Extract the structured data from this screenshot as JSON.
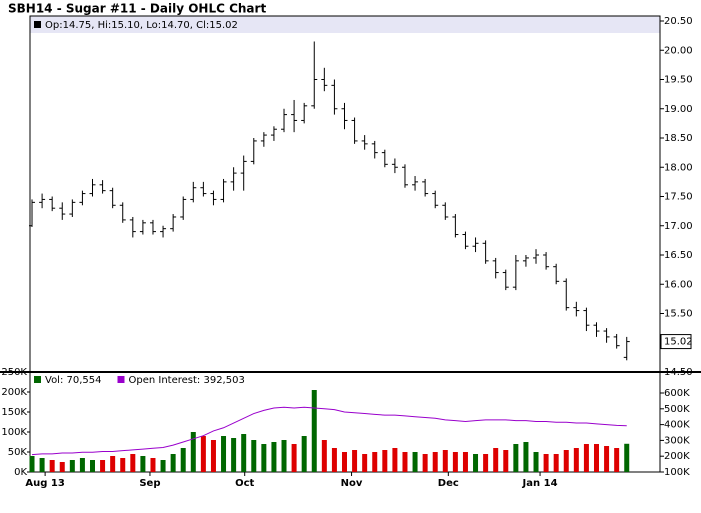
{
  "chart_data": [
    {
      "type": "ohlc",
      "title": "SBH14 - Sugar #11 - Daily OHLC Chart",
      "legend": "Op:14.75, Hi:15.10, Lo:14.70, Cl:15.02",
      "last_price": "15.02",
      "color": "#000000",
      "xlim": [
        -0.2,
        62.3
      ],
      "ylim": [
        14.5,
        20.5
      ],
      "yticks": [
        {
          "value": 14.5,
          "label": "14.50"
        },
        {
          "value": 15.5,
          "label": "15.50"
        },
        {
          "value": 16,
          "label": "16.00"
        },
        {
          "value": 16.5,
          "label": "16.50"
        },
        {
          "value": 17,
          "label": "17.00"
        },
        {
          "value": 17.5,
          "label": "17.50"
        },
        {
          "value": 18,
          "label": "18.00"
        },
        {
          "value": 18.5,
          "label": "18.50"
        },
        {
          "value": 19,
          "label": "19.00"
        },
        {
          "value": 19.5,
          "label": "19.50"
        },
        {
          "value": 20,
          "label": "20.00"
        },
        {
          "value": 20.5,
          "label": "20.50"
        }
      ],
      "series": [
        {
          "name": "OHLC",
          "values": [
            [
              17.0,
              17.45,
              16.98,
              17.4
            ],
            [
              17.4,
              17.55,
              17.3,
              17.45
            ],
            [
              17.45,
              17.5,
              17.25,
              17.3
            ],
            [
              17.3,
              17.4,
              17.1,
              17.2
            ],
            [
              17.2,
              17.45,
              17.15,
              17.4
            ],
            [
              17.4,
              17.6,
              17.35,
              17.55
            ],
            [
              17.55,
              17.8,
              17.5,
              17.7
            ],
            [
              17.7,
              17.78,
              17.55,
              17.6
            ],
            [
              17.6,
              17.65,
              17.3,
              17.35
            ],
            [
              17.35,
              17.4,
              17.05,
              17.1
            ],
            [
              17.1,
              17.15,
              16.8,
              16.9
            ],
            [
              16.9,
              17.1,
              16.85,
              17.05
            ],
            [
              17.05,
              17.1,
              16.85,
              16.9
            ],
            [
              16.9,
              17.0,
              16.8,
              16.95
            ],
            [
              16.95,
              17.2,
              16.9,
              17.15
            ],
            [
              17.15,
              17.5,
              17.1,
              17.45
            ],
            [
              17.45,
              17.75,
              17.4,
              17.65
            ],
            [
              17.65,
              17.75,
              17.5,
              17.55
            ],
            [
              17.55,
              17.6,
              17.35,
              17.45
            ],
            [
              17.45,
              17.8,
              17.4,
              17.75
            ],
            [
              17.75,
              18.0,
              17.6,
              17.9
            ],
            [
              17.9,
              18.2,
              17.6,
              18.1
            ],
            [
              18.1,
              18.5,
              18.05,
              18.45
            ],
            [
              18.45,
              18.6,
              18.35,
              18.55
            ],
            [
              18.55,
              18.7,
              18.45,
              18.65
            ],
            [
              18.65,
              19.0,
              18.6,
              18.9
            ],
            [
              18.9,
              19.15,
              18.6,
              18.8
            ],
            [
              18.8,
              19.1,
              18.75,
              19.05
            ],
            [
              19.05,
              20.15,
              19.0,
              19.5
            ],
            [
              19.5,
              19.7,
              19.3,
              19.4
            ],
            [
              19.4,
              19.5,
              18.9,
              19.0
            ],
            [
              19.0,
              19.1,
              18.65,
              18.8
            ],
            [
              18.8,
              18.85,
              18.4,
              18.45
            ],
            [
              18.45,
              18.55,
              18.3,
              18.4
            ],
            [
              18.4,
              18.45,
              18.15,
              18.25
            ],
            [
              18.25,
              18.3,
              18.0,
              18.05
            ],
            [
              18.05,
              18.15,
              17.9,
              18.0
            ],
            [
              18.0,
              18.05,
              17.65,
              17.7
            ],
            [
              17.7,
              17.85,
              17.6,
              17.75
            ],
            [
              17.75,
              17.8,
              17.5,
              17.55
            ],
            [
              17.55,
              17.6,
              17.3,
              17.35
            ],
            [
              17.35,
              17.4,
              17.1,
              17.15
            ],
            [
              17.15,
              17.2,
              16.8,
              16.85
            ],
            [
              16.85,
              16.9,
              16.6,
              16.65
            ],
            [
              16.65,
              16.8,
              16.55,
              16.7
            ],
            [
              16.7,
              16.75,
              16.35,
              16.4
            ],
            [
              16.4,
              16.45,
              16.1,
              16.2
            ],
            [
              16.2,
              16.25,
              15.9,
              15.95
            ],
            [
              15.95,
              16.5,
              15.9,
              16.4
            ],
            [
              16.4,
              16.5,
              16.3,
              16.45
            ],
            [
              16.45,
              16.6,
              16.35,
              16.5
            ],
            [
              16.5,
              16.55,
              16.25,
              16.3
            ],
            [
              16.3,
              16.35,
              16.0,
              16.05
            ],
            [
              16.05,
              16.1,
              15.55,
              15.6
            ],
            [
              15.6,
              15.7,
              15.45,
              15.55
            ],
            [
              15.55,
              15.6,
              15.2,
              15.3
            ],
            [
              15.3,
              15.35,
              15.1,
              15.2
            ],
            [
              15.2,
              15.25,
              15.0,
              15.1
            ],
            [
              15.1,
              15.15,
              14.9,
              14.95
            ],
            [
              14.75,
              15.1,
              14.7,
              15.02
            ]
          ]
        }
      ]
    },
    {
      "type": "volume",
      "xlim": [
        -0.2,
        62.3
      ],
      "ylim": [
        0,
        250000
      ],
      "y2lim": [
        100000,
        733000
      ],
      "up_color": "#006600",
      "down_color": "#dd0000",
      "yticks": [
        {
          "value": 0,
          "label": "0K"
        },
        {
          "value": 50000,
          "label": "50K"
        },
        {
          "value": 100000,
          "label": "100K"
        },
        {
          "value": 150000,
          "label": "150K"
        },
        {
          "value": 200000,
          "label": "200K"
        },
        {
          "value": 250000,
          "label": "250K"
        }
      ],
      "y2ticks": [
        {
          "value": 100000,
          "label": "100K"
        },
        {
          "value": 200000,
          "label": "200K"
        },
        {
          "value": 300000,
          "label": "300K"
        },
        {
          "value": 400000,
          "label": "400K"
        },
        {
          "value": 500000,
          "label": "500K"
        },
        {
          "value": 600000,
          "label": "600K"
        }
      ],
      "xticks": [
        {
          "value": 1.3,
          "label": "Aug 13"
        },
        {
          "value": 11.7,
          "label": "Sep"
        },
        {
          "value": 21.1,
          "label": "Oct"
        },
        {
          "value": 31.7,
          "label": "Nov"
        },
        {
          "value": 41.3,
          "label": "Dec"
        },
        {
          "value": 50.4,
          "label": "Jan 14"
        }
      ],
      "series": [
        {
          "name": "Vol: 70,554",
          "color": "#006600",
          "values": [
            40000,
            35000,
            30000,
            25000,
            30000,
            35000,
            30000,
            30000,
            40000,
            35000,
            45000,
            40000,
            35000,
            30000,
            45000,
            60000,
            100000,
            90000,
            80000,
            90000,
            85000,
            95000,
            80000,
            70000,
            75000,
            80000,
            70000,
            90000,
            205000,
            80000,
            60000,
            50000,
            55000,
            45000,
            50000,
            55000,
            60000,
            50000,
            50000,
            45000,
            50000,
            55000,
            50000,
            50000,
            45000,
            45000,
            60000,
            55000,
            70000,
            75000,
            50000,
            45000,
            45000,
            55000,
            60000,
            70000,
            70000,
            65000,
            60000,
            70554
          ]
        },
        {
          "name": "Open Interest: 392,503",
          "color": "#9900cc",
          "axis": "y2",
          "values": [
            210000,
            215000,
            215000,
            220000,
            220000,
            225000,
            225000,
            230000,
            230000,
            235000,
            240000,
            245000,
            250000,
            255000,
            270000,
            290000,
            310000,
            330000,
            360000,
            380000,
            410000,
            440000,
            470000,
            490000,
            505000,
            510000,
            505000,
            510000,
            505000,
            500000,
            495000,
            480000,
            475000,
            470000,
            465000,
            460000,
            460000,
            455000,
            450000,
            445000,
            440000,
            430000,
            425000,
            420000,
            425000,
            430000,
            430000,
            430000,
            425000,
            425000,
            420000,
            420000,
            415000,
            415000,
            410000,
            410000,
            405000,
            400000,
            395000,
            392503
          ]
        }
      ]
    }
  ]
}
